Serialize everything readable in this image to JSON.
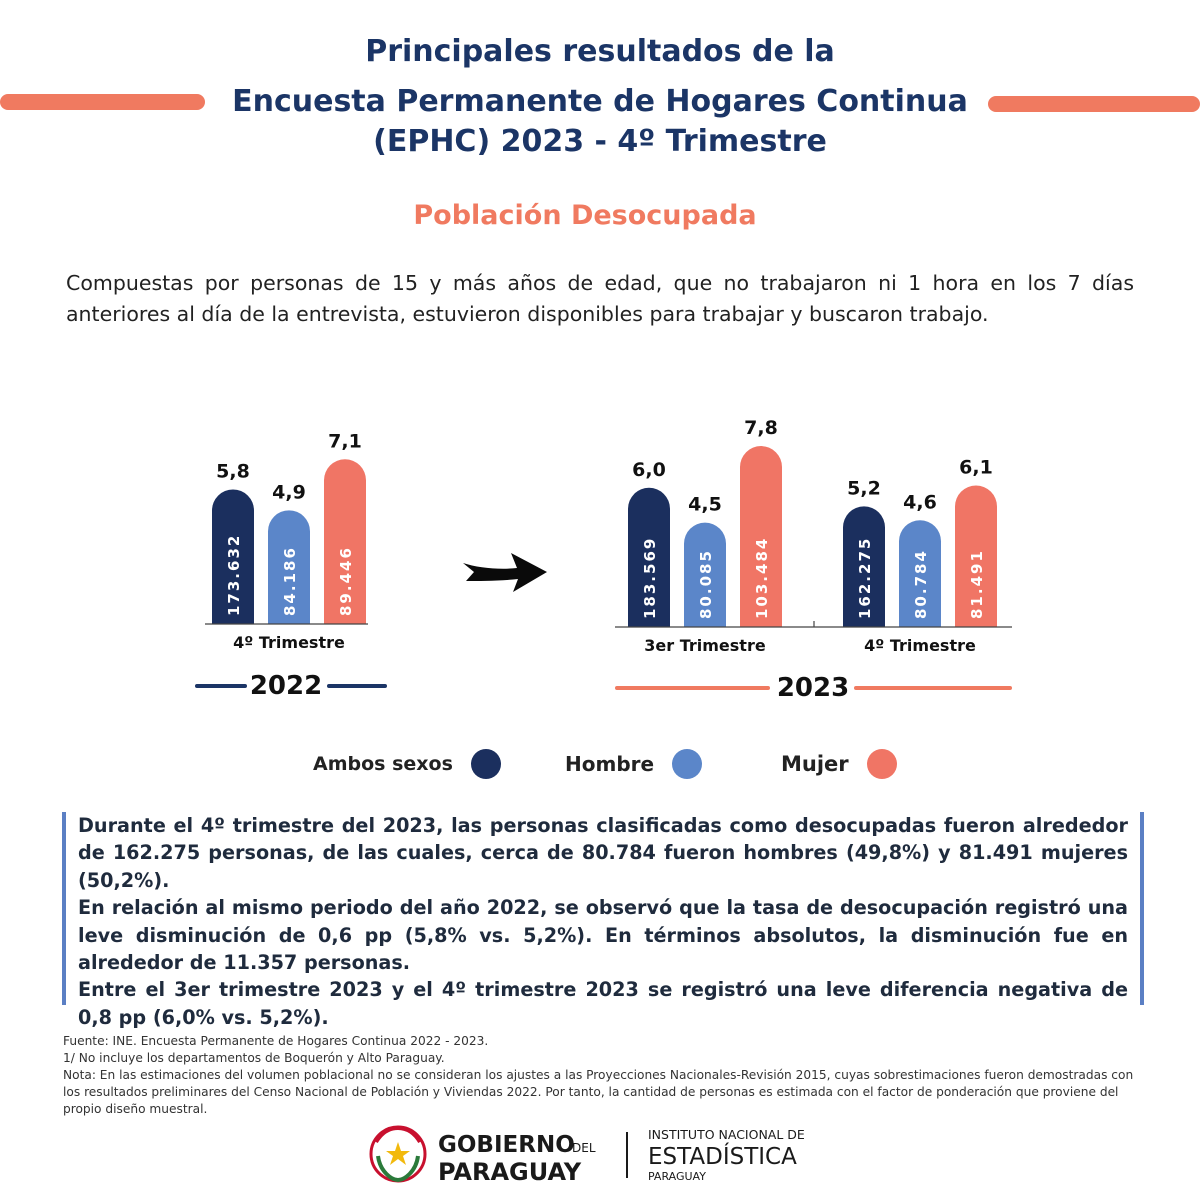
{
  "header": {
    "title_line1": "Principales resultados de la",
    "title_line2": "Encuesta Permanente de Hogares Continua",
    "title_line3": "(EPHC) 2023 - 4º Trimestre",
    "subtitle": "Población Desocupada"
  },
  "intro": "Compuestas por personas de 15 y más años de edad, que no trabajaron ni 1 hora en los 7 días anteriores al día de la entrevista, estuvieron disponibles para trabajar y buscaron trabajo.",
  "chart_data": {
    "type": "bar",
    "title": "",
    "xlabel": "",
    "ylabel": "",
    "groups": [
      {
        "year": "2022",
        "period": "4º Trimestre"
      },
      {
        "year": "2023",
        "period": "3er Trimestre"
      },
      {
        "year": "2023",
        "period": "4º Trimestre"
      }
    ],
    "series": [
      {
        "name": "Ambos sexos",
        "color": "#1b2f5e",
        "rates": [
          5.8,
          6.0,
          5.2
        ],
        "rate_labels": [
          "5,8",
          "6,0",
          "5,2"
        ],
        "counts": [
          173632,
          183569,
          162275
        ],
        "count_labels": [
          "173.632",
          "183.569",
          "162.275"
        ]
      },
      {
        "name": "Hombre",
        "color": "#5b86c9",
        "rates": [
          4.9,
          4.5,
          4.6
        ],
        "rate_labels": [
          "4,9",
          "4,5",
          "4,6"
        ],
        "counts": [
          84186,
          80085,
          80784
        ],
        "count_labels": [
          "84.186",
          "80.085",
          "80.784"
        ]
      },
      {
        "name": "Mujer",
        "color": "#f07565",
        "rates": [
          7.1,
          7.8,
          6.1
        ],
        "rate_labels": [
          "7,1",
          "7,8",
          "6,1"
        ],
        "counts": [
          89446,
          103484,
          81491
        ],
        "count_labels": [
          "89.446",
          "103.484",
          "81.491"
        ]
      }
    ],
    "year_labels": [
      "2022",
      "2023"
    ],
    "legend_position": "bottom",
    "grid": false
  },
  "legend": [
    {
      "label": "Ambos sexos",
      "color": "#1b2f5e"
    },
    {
      "label": "Hombre",
      "color": "#5b86c9"
    },
    {
      "label": "Mujer",
      "color": "#f07565"
    }
  ],
  "summary": {
    "p1": "Durante el 4º trimestre del 2023, las personas clasificadas como desocupadas fueron alrededor de 162.275 personas, de las cuales, cerca de 80.784 fueron hombres (49,8%) y 81.491 mujeres (50,2%).",
    "p2": "En relación al mismo periodo del año 2022, se observó que la tasa de desocupación registró una leve disminución de 0,6 pp (5,8% vs. 5,2%). En términos absolutos, la disminución fue en alrededor de 11.357 personas.",
    "p3": "Entre el 3er trimestre 2023 y el 4º trimestre 2023 se registró una leve diferencia negativa de 0,8 pp (6,0% vs. 5,2%)."
  },
  "notes": {
    "source": "Fuente: INE. Encuesta Permanente de Hogares Continua 2022 - 2023.",
    "note1": "1/ No incluye los departamentos de Boquerón y Alto Paraguay.",
    "note2": "Nota: En las estimaciones del volumen poblacional no se consideran los ajustes a las Proyecciones Nacionales-Revisión 2015, cuyas sobrestimaciones fueron demostradas con los resultados preliminares del Censo Nacional de Población y Viviendas 2022. Por tanto, la cantidad de personas es estimada con el factor de ponderación que proviene del propio diseño muestral."
  },
  "footer": {
    "gov_line1": "GOBIERNO",
    "gov_del": "DEL",
    "gov_line2": "PARAGUAY",
    "ine_line1": "INSTITUTO NACIONAL DE",
    "ine_line2": "ESTADÍSTICA",
    "ine_line3": "PARAGUAY"
  },
  "colors": {
    "navy": "#1b3566",
    "coral": "#f07a60",
    "accent_blue": "#5b7fc4"
  }
}
